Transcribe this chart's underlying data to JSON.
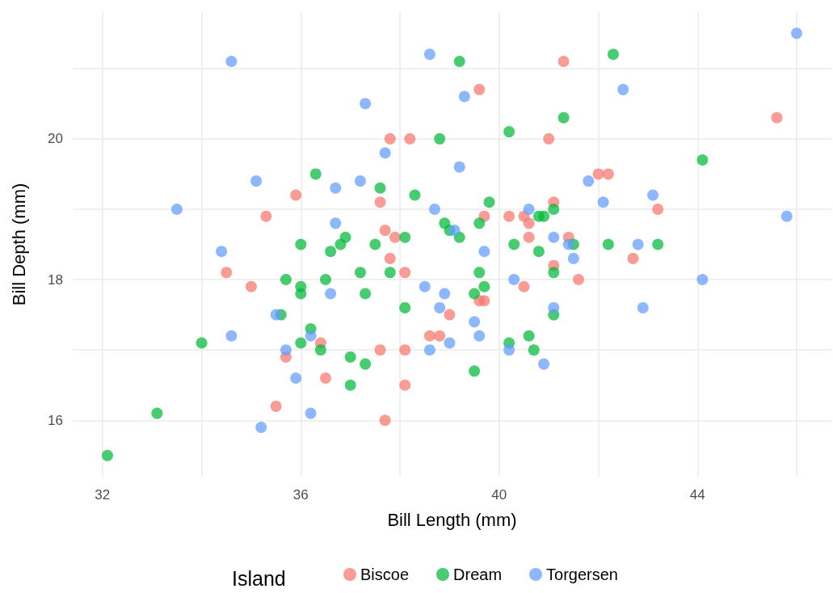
{
  "chart_data": {
    "type": "scatter",
    "xlabel": "Bill Length (mm)",
    "ylabel": "Bill Depth (mm)",
    "legend_title": "Island",
    "legend": "bottom",
    "grid": true,
    "marker": "circle",
    "xlim": [
      31.4,
      46.7
    ],
    "ylim": [
      15.2,
      21.8
    ],
    "xticks": [
      32,
      {
        "value": 34,
        "label": null
      },
      36,
      {
        "value": 38,
        "label": null
      },
      40,
      {
        "value": 42,
        "label": null
      },
      44,
      {
        "value": 46,
        "label": null
      }
    ],
    "yticks": [
      16,
      {
        "value": 17,
        "label": null
      },
      18,
      {
        "value": 19,
        "label": null
      },
      20,
      {
        "value": 21,
        "label": null
      }
    ],
    "series": [
      {
        "name": "Biscoe",
        "color": "#f8766d",
        "x": [
          45.6,
          41.3,
          39.6,
          37.8,
          38.2,
          41.0,
          42.0,
          42.2,
          41.1,
          43.2,
          37.6,
          35.9,
          35.3,
          39.7,
          40.2,
          40.5,
          40.6,
          37.7,
          37.9,
          40.6,
          41.4,
          37.8,
          38.1,
          34.5,
          35.0,
          40.5,
          41.6,
          41.1,
          42.7,
          39.6,
          39.7,
          39.0,
          38.6,
          38.8,
          37.6,
          38.1,
          36.4,
          35.7,
          36.5,
          38.1,
          35.5,
          37.7
        ],
        "values": [
          20.3,
          21.1,
          20.7,
          20.0,
          20.0,
          20.0,
          19.5,
          19.5,
          19.1,
          19.0,
          19.1,
          19.2,
          18.9,
          18.9,
          18.9,
          18.9,
          18.8,
          18.7,
          18.6,
          18.6,
          18.6,
          18.3,
          18.1,
          18.1,
          17.9,
          17.9,
          18.0,
          18.2,
          18.3,
          17.7,
          17.7,
          17.5,
          17.2,
          17.2,
          17.0,
          17.0,
          17.1,
          16.9,
          16.6,
          16.5,
          16.2,
          16.0
        ]
      },
      {
        "name": "Dream",
        "color": "#00ba38",
        "x": [
          32.1,
          33.1,
          34.0,
          35.6,
          35.7,
          36.0,
          36.0,
          36.0,
          36.0,
          36.2,
          36.4,
          36.5,
          36.3,
          36.6,
          36.8,
          36.9,
          37.0,
          37.0,
          37.2,
          37.3,
          37.3,
          37.5,
          37.6,
          37.8,
          38.1,
          38.1,
          38.3,
          38.8,
          38.9,
          39.0,
          39.2,
          39.2,
          39.8,
          39.6,
          39.6,
          39.7,
          39.5,
          39.5,
          40.2,
          40.3,
          40.2,
          40.6,
          40.7,
          40.8,
          40.8,
          40.9,
          41.1,
          41.1,
          41.1,
          41.3,
          41.5,
          42.2,
          42.3,
          43.2,
          44.1
        ],
        "values": [
          15.5,
          16.1,
          17.1,
          17.5,
          18.0,
          18.5,
          17.9,
          17.8,
          17.1,
          17.3,
          17.0,
          18.0,
          19.5,
          18.4,
          18.5,
          18.6,
          16.9,
          16.5,
          18.1,
          17.8,
          16.8,
          18.5,
          19.3,
          18.1,
          18.6,
          17.6,
          19.2,
          20.0,
          18.8,
          18.7,
          18.6,
          21.1,
          19.1,
          18.8,
          18.1,
          17.9,
          17.8,
          16.7,
          20.1,
          18.5,
          17.1,
          17.2,
          17.0,
          18.4,
          18.9,
          18.9,
          19.0,
          18.1,
          17.5,
          20.3,
          18.5,
          18.5,
          21.2,
          18.5,
          19.7
        ]
      },
      {
        "name": "Torgersen",
        "color": "#619cff",
        "x": [
          34.6,
          33.5,
          35.1,
          34.4,
          34.6,
          35.5,
          35.2,
          35.7,
          35.9,
          36.2,
          36.2,
          36.6,
          36.7,
          36.7,
          37.2,
          37.3,
          37.7,
          38.6,
          38.7,
          39.2,
          39.3,
          39.1,
          39.7,
          38.5,
          38.9,
          38.8,
          39.5,
          39.6,
          39.0,
          38.6,
          40.3,
          40.2,
          40.9,
          41.1,
          40.6,
          41.1,
          41.4,
          41.5,
          42.5,
          41.8,
          42.1,
          42.8,
          43.1,
          45.8,
          46.0,
          44.1,
          42.9
        ],
        "values": [
          21.1,
          19.0,
          19.4,
          18.4,
          17.2,
          17.5,
          15.9,
          17.0,
          16.6,
          17.2,
          16.1,
          17.8,
          19.3,
          18.8,
          19.4,
          20.5,
          19.8,
          21.2,
          19.0,
          19.6,
          20.6,
          18.7,
          18.4,
          17.9,
          17.8,
          17.6,
          17.4,
          17.2,
          17.1,
          17.0,
          18.0,
          17.0,
          16.8,
          17.6,
          19.0,
          18.6,
          18.5,
          18.3,
          20.7,
          19.4,
          19.1,
          18.5,
          19.2,
          18.9,
          21.5,
          18.0,
          17.6
        ]
      }
    ]
  }
}
